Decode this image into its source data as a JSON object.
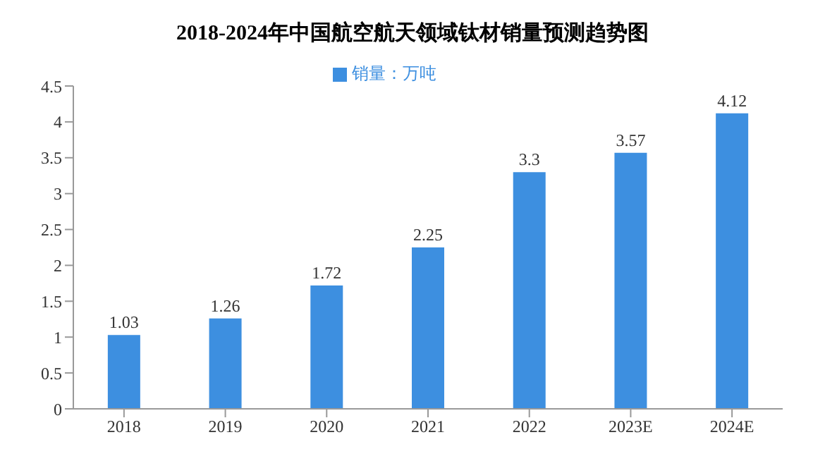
{
  "chart_data": {
    "type": "bar",
    "title": "2018-2024年中国航空航天领域钛材销量预测趋势图",
    "categories": [
      "2018",
      "2019",
      "2020",
      "2021",
      "2022",
      "2023E",
      "2024E"
    ],
    "series": [
      {
        "name": "销量：万吨",
        "color": "#3d8fe0",
        "values": [
          1.03,
          1.26,
          1.72,
          2.25,
          3.3,
          3.57,
          4.12
        ]
      }
    ],
    "ylim": [
      0,
      4.5
    ],
    "yticks": [
      0,
      0.5,
      1,
      1.5,
      2,
      2.5,
      3,
      3.5,
      4,
      4.5
    ],
    "grid": false,
    "legend": "top",
    "data_labels": true
  }
}
